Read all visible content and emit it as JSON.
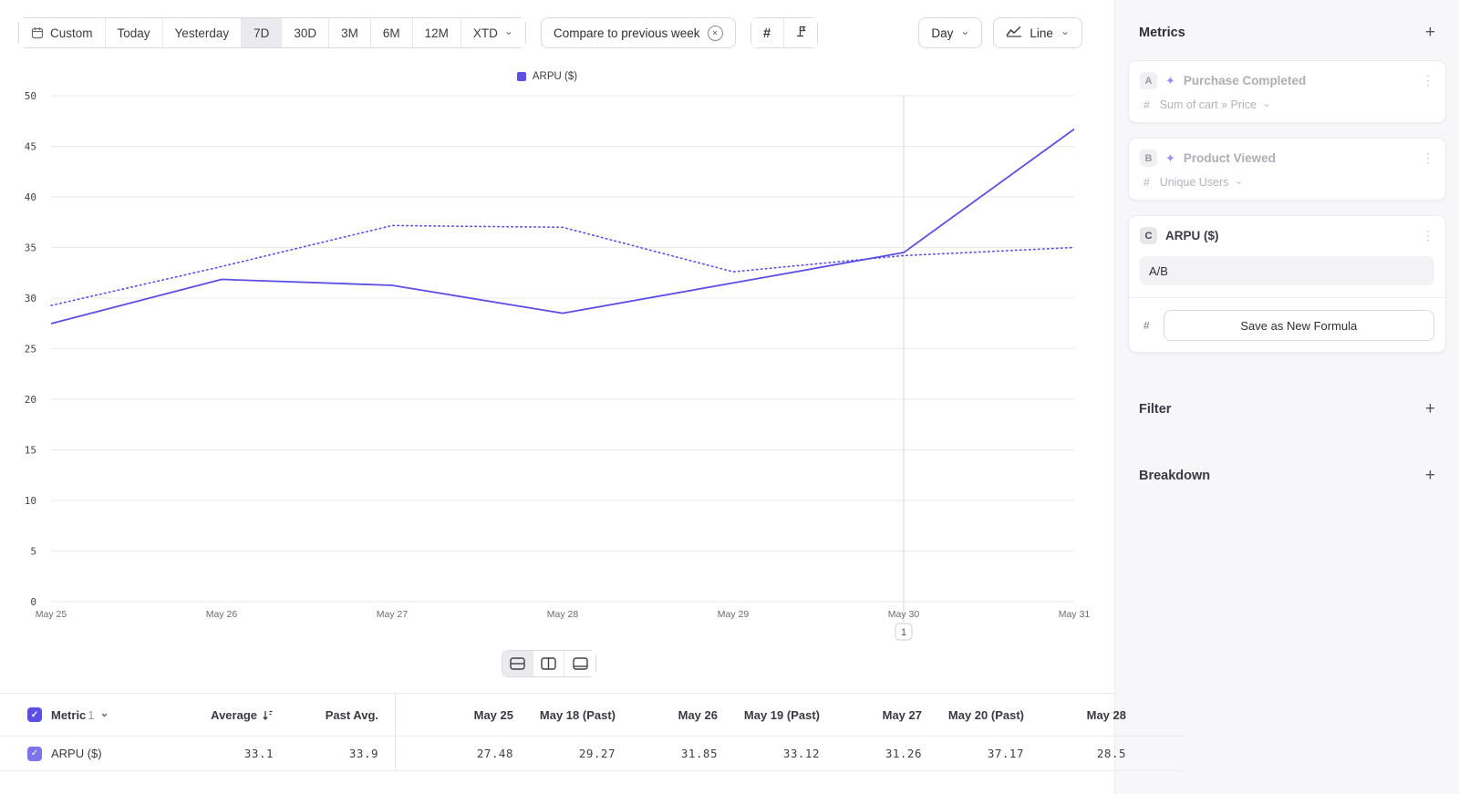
{
  "accent": "#5b50e2",
  "glyphs": {
    "check": "✓",
    "close": "✕",
    "chevron_down": "⌄",
    "plus": "+",
    "dots": "⋮",
    "sparkle": "✦",
    "hash": "#"
  },
  "toolbar": {
    "date_ranges": [
      "Custom",
      "Today",
      "Yesterday",
      "7D",
      "30D",
      "3M",
      "6M",
      "12M",
      "XTD"
    ],
    "selected_range": "7D",
    "compare_pill": "Compare to previous week",
    "granularity": "Day",
    "chart_type": "Line"
  },
  "legend": {
    "label": "ARPU ($)",
    "color": "#5b50e2"
  },
  "chart_data": {
    "type": "line",
    "title": "",
    "legend": [
      "ARPU ($)"
    ],
    "x": [
      "May 25",
      "May 26",
      "May 27",
      "May 28",
      "May 29",
      "May 30",
      "May 31"
    ],
    "series": [
      {
        "name": "ARPU ($)",
        "style": "solid",
        "values": [
          27.48,
          31.85,
          31.26,
          28.5,
          31.5,
          34.5,
          46.7
        ]
      },
      {
        "name": "ARPU ($) previous week",
        "style": "dotted",
        "values": [
          29.27,
          33.12,
          37.17,
          37.0,
          32.6,
          34.2,
          35.0
        ]
      }
    ],
    "ylim": [
      0,
      50
    ],
    "yticks": [
      0,
      5,
      10,
      15,
      20,
      25,
      30,
      35,
      40,
      45,
      50
    ],
    "grid": "horizontal",
    "color": "#5b50e2",
    "annotation_marker": {
      "x": "May 30",
      "label": "1"
    }
  },
  "table": {
    "metric_header": {
      "label": "Metric",
      "count": "1"
    },
    "columns": [
      "Average",
      "Past Avg.",
      "May 25",
      "May 18 (Past)",
      "May 26",
      "May 19 (Past)",
      "May 27",
      "May 20 (Past)",
      "May 28"
    ],
    "rows": [
      {
        "metric": "ARPU ($)",
        "checked": true,
        "values": [
          "33.1",
          "33.9",
          "27.48",
          "29.27",
          "31.85",
          "33.12",
          "31.26",
          "37.17",
          "28.5"
        ]
      }
    ]
  },
  "sidebar": {
    "title": "Metrics",
    "metrics": [
      {
        "badge": "A",
        "name": "Purchase Completed",
        "aggregation": "Sum of cart » Price",
        "state": "dimmed"
      },
      {
        "badge": "B",
        "name": "Product Viewed",
        "aggregation": "Unique Users",
        "state": "dimmed"
      },
      {
        "badge": "C",
        "name": "ARPU ($)",
        "formula": "A/B",
        "save_button": "Save as New Formula",
        "state": "editing"
      }
    ],
    "filter_title": "Filter",
    "breakdown_title": "Breakdown"
  }
}
